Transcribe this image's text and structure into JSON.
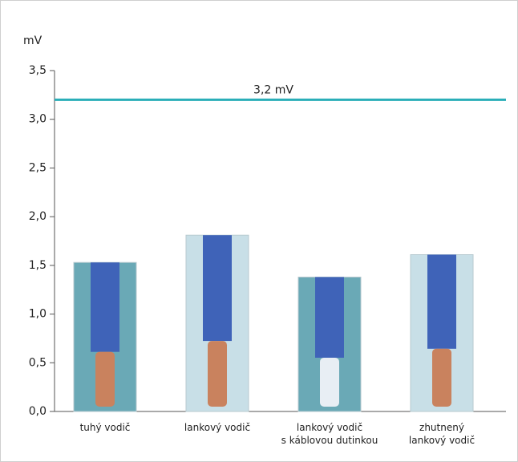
{
  "chart_data": {
    "type": "bar",
    "y_axis_label": "mV",
    "categories": [
      "tuhý vodič",
      "lankový vodič",
      "lankový vodič\ns káblovou dutinkou",
      "zhutnený\nlankový vodič"
    ],
    "values": [
      1.53,
      1.81,
      1.38,
      1.61
    ],
    "colors": [
      "#6aa9b6",
      "#c8dfe7",
      "#6aa9b6",
      "#c8dfe7"
    ],
    "ylim": [
      0,
      3.5
    ],
    "yticks": [
      {
        "value": 0,
        "label": "0,0"
      },
      {
        "value": 0.5,
        "label": "0,5"
      },
      {
        "value": 1,
        "label": "1,0"
      },
      {
        "value": 1.5,
        "label": "1,5"
      },
      {
        "value": 2,
        "label": "2,0"
      },
      {
        "value": 2.5,
        "label": "2,5"
      },
      {
        "value": 3,
        "label": "3,0"
      },
      {
        "value": 3.5,
        "label": "3,5"
      }
    ],
    "reference_line": {
      "value": 3.2,
      "label": "3,2 mV",
      "color": "#2aaeb8"
    }
  }
}
